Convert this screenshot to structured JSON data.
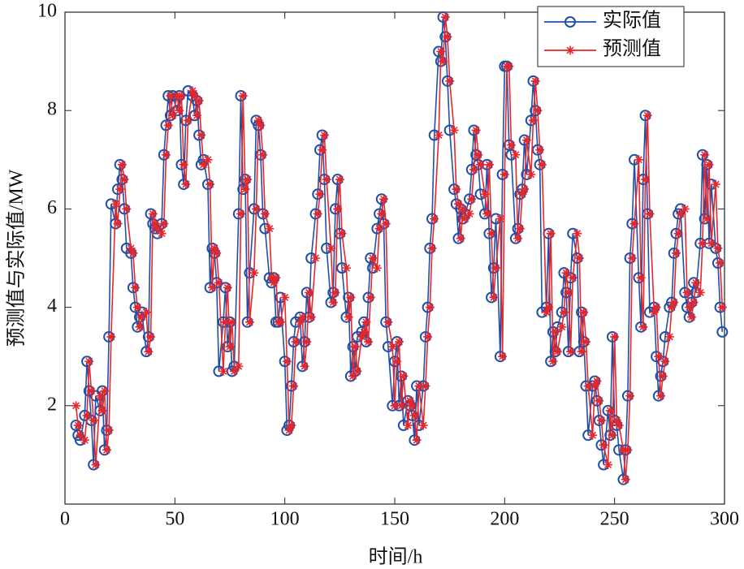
{
  "chart_data": {
    "type": "line",
    "x_label": "时间/h",
    "y_label": "预测值与实际值/MW",
    "xlim": [
      0,
      300
    ],
    "xticks": [
      0,
      50,
      100,
      150,
      200,
      250,
      300
    ],
    "ylim": [
      0,
      10
    ],
    "yticks": [
      2,
      4,
      6,
      8,
      10
    ],
    "grid": false,
    "legend": "upper right",
    "x": [
      5,
      6,
      7,
      9,
      10,
      11,
      12,
      13,
      14,
      16,
      17,
      18,
      19,
      20,
      21,
      23,
      24,
      25,
      26,
      27,
      28,
      30,
      31,
      32,
      33,
      34,
      35,
      37,
      38,
      39,
      40,
      41,
      42,
      44,
      45,
      46,
      47,
      48,
      49,
      51,
      52,
      53,
      54,
      55,
      56,
      58,
      59,
      60,
      61,
      62,
      63,
      65,
      66,
      67,
      68,
      69,
      70,
      72,
      73,
      74,
      75,
      76,
      77,
      79,
      80,
      81,
      82,
      83,
      84,
      86,
      87,
      88,
      89,
      90,
      91,
      93,
      94,
      95,
      96,
      97,
      98,
      100,
      101,
      102,
      103,
      104,
      105,
      107,
      108,
      109,
      110,
      111,
      112,
      114,
      115,
      116,
      117,
      118,
      119,
      121,
      122,
      123,
      124,
      125,
      126,
      128,
      129,
      130,
      131,
      132,
      133,
      135,
      136,
      137,
      138,
      139,
      140,
      142,
      143,
      144,
      145,
      146,
      147,
      149,
      150,
      151,
      152,
      153,
      154,
      156,
      157,
      158,
      159,
      160,
      161,
      163,
      164,
      165,
      166,
      167,
      168,
      170,
      171,
      172,
      173,
      174,
      175,
      177,
      178,
      179,
      180,
      181,
      182,
      184,
      185,
      186,
      187,
      188,
      189,
      191,
      192,
      193,
      194,
      195,
      196,
      198,
      199,
      200,
      201,
      202,
      203,
      205,
      206,
      207,
      208,
      209,
      210,
      212,
      213,
      214,
      215,
      216,
      217,
      219,
      220,
      221,
      222,
      223,
      224,
      226,
      227,
      228,
      229,
      230,
      231,
      233,
      234,
      235,
      236,
      237,
      238,
      240,
      241,
      242,
      243,
      244,
      245,
      247,
      248,
      249,
      250,
      251,
      252,
      254,
      255,
      256,
      257,
      258,
      259,
      261,
      262,
      263,
      264,
      265,
      266,
      268,
      269,
      270,
      271,
      272,
      273,
      275,
      276,
      277,
      278,
      279,
      280,
      282,
      283,
      284,
      285,
      286,
      287,
      289,
      290,
      291,
      292,
      293,
      294,
      296,
      297,
      298,
      299
    ],
    "series": [
      {
        "name": "实际值",
        "color": "#1f4fa8",
        "marker": "circle",
        "values": [
          1.6,
          1.4,
          1.3,
          1.8,
          2.9,
          2.3,
          1.7,
          0.8,
          2.2,
          1.9,
          2.3,
          1.1,
          1.5,
          3.4,
          6.1,
          5.7,
          6.4,
          6.9,
          6.6,
          6.0,
          5.2,
          5.1,
          4.4,
          4.0,
          3.6,
          3.8,
          3.9,
          3.1,
          3.4,
          5.9,
          5.7,
          5.6,
          5.5,
          5.7,
          7.1,
          7.7,
          8.3,
          7.9,
          8.3,
          8.0,
          8.3,
          6.9,
          6.5,
          7.8,
          8.4,
          8.3,
          7.9,
          8.2,
          7.5,
          6.9,
          7.0,
          6.5,
          4.4,
          5.2,
          5.1,
          4.5,
          2.7,
          3.7,
          4.4,
          3.2,
          3.7,
          2.7,
          2.8,
          5.9,
          8.3,
          6.4,
          6.6,
          3.7,
          4.7,
          6.0,
          7.8,
          7.7,
          7.1,
          5.9,
          5.6,
          4.6,
          4.5,
          4.6,
          3.7,
          3.7,
          4.2,
          2.9,
          1.5,
          1.6,
          2.4,
          3.3,
          3.7,
          3.8,
          2.8,
          3.3,
          4.3,
          3.8,
          5.0,
          5.9,
          6.3,
          7.2,
          7.5,
          6.6,
          5.2,
          4.1,
          4.3,
          6.0,
          6.6,
          5.5,
          4.8,
          3.8,
          4.2,
          2.6,
          3.2,
          2.7,
          3.4,
          3.5,
          3.7,
          3.3,
          4.2,
          5.0,
          4.8,
          5.6,
          5.9,
          6.2,
          5.7,
          3.7,
          3.2,
          2.0,
          2.9,
          3.3,
          2.0,
          2.6,
          1.6,
          2.1,
          2.0,
          1.8,
          1.3,
          2.4,
          1.6,
          2.4,
          3.4,
          4.0,
          5.2,
          5.8,
          7.5,
          9.2,
          9.0,
          9.9,
          9.5,
          8.6,
          7.6,
          6.4,
          6.1,
          5.4,
          6.0,
          5.8,
          5.9,
          6.2,
          6.8,
          7.6,
          7.1,
          6.9,
          6.3,
          5.9,
          6.9,
          5.5,
          4.2,
          4.8,
          5.8,
          3.0,
          6.7,
          8.9,
          8.9,
          7.3,
          7.1,
          5.4,
          5.6,
          6.3,
          6.4,
          7.4,
          6.7,
          7.8,
          8.6,
          8.0,
          7.2,
          6.9,
          3.9,
          4.0,
          5.5,
          2.9,
          3.5,
          3.1,
          3.6,
          3.9,
          4.7,
          4.3,
          3.1,
          4.6,
          5.5,
          5.0,
          3.1,
          3.9,
          3.3,
          2.4,
          1.4,
          2.4,
          2.5,
          2.1,
          1.7,
          1.2,
          0.8,
          1.9,
          1.4,
          3.4,
          1.7,
          1.6,
          1.1,
          0.5,
          1.1,
          2.2,
          5.0,
          5.7,
          7.0,
          4.6,
          3.6,
          6.6,
          7.9,
          5.9,
          3.9,
          4.0,
          3.0,
          2.2,
          2.6,
          2.9,
          3.4,
          4.0,
          4.1,
          5.1,
          5.5,
          5.9,
          6.0,
          4.3,
          4.0,
          3.8,
          4.1,
          4.5,
          4.3,
          5.3,
          7.1,
          5.8,
          6.9,
          5.3,
          6.5,
          5.2,
          4.9,
          4.0,
          3.5
        ]
      },
      {
        "name": "预测值",
        "color": "#e8262a",
        "marker": "star",
        "values": [
          2.0,
          1.6,
          1.4,
          1.3,
          1.8,
          2.9,
          2.3,
          1.7,
          0.8,
          2.2,
          1.9,
          2.3,
          1.1,
          1.5,
          3.4,
          6.1,
          5.7,
          6.4,
          6.9,
          6.6,
          6.0,
          5.2,
          5.1,
          4.4,
          4.0,
          3.6,
          3.8,
          3.9,
          3.1,
          3.4,
          5.9,
          5.7,
          5.6,
          5.5,
          5.7,
          7.1,
          7.7,
          8.3,
          7.9,
          8.3,
          8.0,
          8.3,
          6.9,
          6.5,
          7.8,
          8.4,
          8.3,
          7.9,
          8.2,
          7.5,
          6.9,
          7.0,
          6.5,
          4.4,
          5.2,
          5.1,
          4.5,
          2.7,
          3.7,
          4.4,
          3.2,
          3.7,
          2.7,
          2.8,
          5.9,
          8.3,
          6.4,
          6.6,
          3.7,
          4.7,
          6.0,
          7.8,
          7.7,
          7.1,
          5.9,
          5.6,
          4.6,
          4.5,
          4.6,
          3.7,
          3.7,
          4.2,
          2.9,
          1.5,
          1.6,
          2.4,
          3.3,
          3.7,
          3.8,
          2.8,
          3.3,
          4.3,
          3.8,
          5.0,
          5.9,
          6.3,
          7.2,
          7.5,
          6.6,
          5.2,
          4.1,
          4.3,
          6.0,
          6.6,
          5.5,
          4.8,
          3.8,
          4.2,
          2.6,
          3.2,
          2.7,
          3.4,
          3.5,
          3.7,
          3.3,
          4.2,
          5.0,
          4.8,
          5.6,
          5.9,
          6.2,
          5.7,
          3.7,
          3.2,
          2.0,
          2.9,
          3.3,
          2.0,
          2.6,
          1.6,
          2.1,
          2.0,
          1.8,
          1.3,
          2.4,
          1.6,
          2.4,
          3.4,
          4.0,
          5.2,
          5.8,
          7.5,
          9.2,
          9.0,
          9.9,
          9.5,
          8.6,
          7.6,
          6.4,
          6.1,
          5.4,
          6.0,
          5.8,
          5.9,
          6.2,
          6.8,
          7.6,
          7.1,
          6.9,
          6.3,
          5.9,
          6.9,
          5.5,
          4.2,
          4.8,
          5.8,
          3.0,
          6.7,
          8.9,
          8.9,
          7.3,
          7.1,
          5.4,
          5.6,
          6.3,
          6.4,
          7.4,
          6.7,
          7.8,
          8.6,
          8.0,
          7.2,
          6.9,
          3.9,
          4.0,
          5.5,
          2.9,
          3.5,
          3.1,
          3.6,
          3.9,
          4.7,
          4.3,
          3.1,
          4.6,
          5.5,
          5.0,
          3.1,
          3.9,
          3.3,
          2.4,
          1.4,
          2.4,
          2.5,
          2.1,
          1.7,
          1.2,
          0.8,
          1.9,
          1.4,
          3.4,
          1.7,
          1.6,
          1.1,
          0.5,
          1.1,
          2.2,
          5.0,
          5.7,
          7.0,
          4.6,
          3.6,
          6.6,
          7.9,
          5.9,
          3.9,
          4.0,
          3.0,
          2.2,
          2.6,
          2.9,
          3.4,
          4.0,
          4.1,
          5.1,
          5.5,
          5.9,
          6.0,
          4.3,
          4.0,
          3.8,
          4.1,
          4.5,
          4.3,
          5.3,
          7.1,
          5.8,
          6.9,
          5.3,
          6.5,
          5.2,
          4.9,
          4.0
        ]
      }
    ]
  }
}
